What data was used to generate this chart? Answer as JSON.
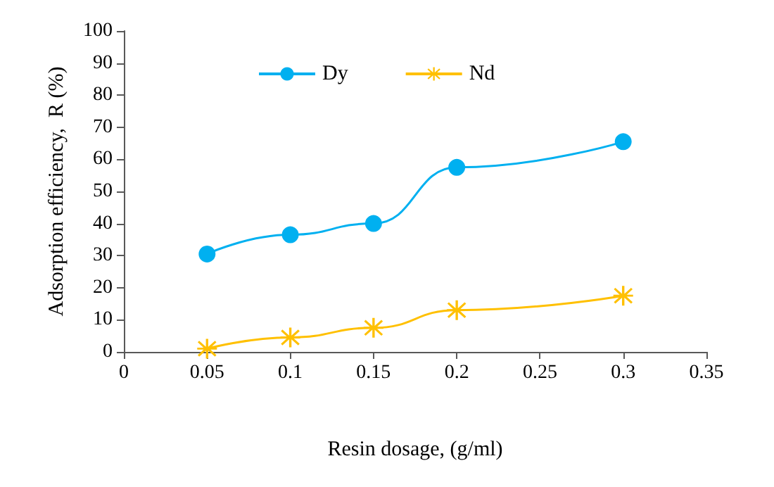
{
  "chart_data": {
    "type": "line",
    "xlabel": "Resin dosage, (g/ml)",
    "ylabel": "Adsorption efficiency,  R (%)",
    "x": [
      0.05,
      0.1,
      0.15,
      0.2,
      0.3
    ],
    "series": [
      {
        "name": "Dy",
        "color": "#00b0f0",
        "marker": "circle",
        "values": [
          30.5,
          36.5,
          40,
          57.5,
          65.5
        ]
      },
      {
        "name": "Nd",
        "color": "#ffc000",
        "marker": "star",
        "values": [
          1,
          4.5,
          7.5,
          13,
          17.5
        ]
      }
    ],
    "xlim": [
      0,
      0.35
    ],
    "xticks": [
      0,
      0.05,
      0.1,
      0.15,
      0.2,
      0.25,
      0.3,
      0.35
    ],
    "ylim": [
      0,
      100
    ],
    "yticks": [
      0,
      10,
      20,
      30,
      40,
      50,
      60,
      70,
      80,
      90,
      100
    ],
    "grid": false,
    "legend": "top",
    "line_style": "solid"
  }
}
